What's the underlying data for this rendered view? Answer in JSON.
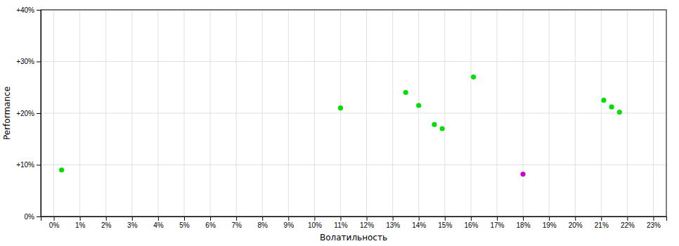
{
  "chart_data": {
    "type": "scatter",
    "x_label": "Волатильность",
    "y_label": "Performance",
    "x": [
      0.3,
      11.0,
      13.5,
      14.0,
      14.6,
      14.9,
      16.1,
      21.1,
      21.4,
      21.7,
      18.0
    ],
    "values": [
      9.0,
      21.0,
      24.0,
      21.5,
      17.8,
      17.0,
      27.0,
      22.5,
      21.2,
      20.2,
      8.2
    ],
    "colors": [
      "#00dd00",
      "#00dd00",
      "#00dd00",
      "#00dd00",
      "#00dd00",
      "#00dd00",
      "#00dd00",
      "#00dd00",
      "#00dd00",
      "#00dd00",
      "#cc00cc"
    ],
    "marker": "circle",
    "xlim": [
      -0.5,
      23.5
    ],
    "ylim": [
      0,
      40
    ],
    "xticks": [
      {
        "value": 0,
        "label": "0%"
      },
      {
        "value": 1,
        "label": "1%"
      },
      {
        "value": 2,
        "label": "2%"
      },
      {
        "value": 3,
        "label": "3%"
      },
      {
        "value": 4,
        "label": "4%"
      },
      {
        "value": 5,
        "label": "5%"
      },
      {
        "value": 6,
        "label": "6%"
      },
      {
        "value": 7,
        "label": "7%"
      },
      {
        "value": 8,
        "label": "8%"
      },
      {
        "value": 9,
        "label": "9%"
      },
      {
        "value": 10,
        "label": "10%"
      },
      {
        "value": 11,
        "label": "11%"
      },
      {
        "value": 12,
        "label": "12%"
      },
      {
        "value": 13,
        "label": "13%"
      },
      {
        "value": 14,
        "label": "14%"
      },
      {
        "value": 15,
        "label": "15%"
      },
      {
        "value": 16,
        "label": "16%"
      },
      {
        "value": 17,
        "label": "17%"
      },
      {
        "value": 18,
        "label": "18%"
      },
      {
        "value": 19,
        "label": "19%"
      },
      {
        "value": 20,
        "label": "20%"
      },
      {
        "value": 21,
        "label": "21%"
      },
      {
        "value": 22,
        "label": "22%"
      },
      {
        "value": 23,
        "label": "23%"
      }
    ],
    "yticks": [
      {
        "value": 0,
        "label": "0%"
      },
      {
        "value": 10,
        "label": "+10%"
      },
      {
        "value": 20,
        "label": "+20%"
      },
      {
        "value": 30,
        "label": "+30%"
      },
      {
        "value": 40,
        "label": "+40%"
      }
    ],
    "grid": true
  }
}
